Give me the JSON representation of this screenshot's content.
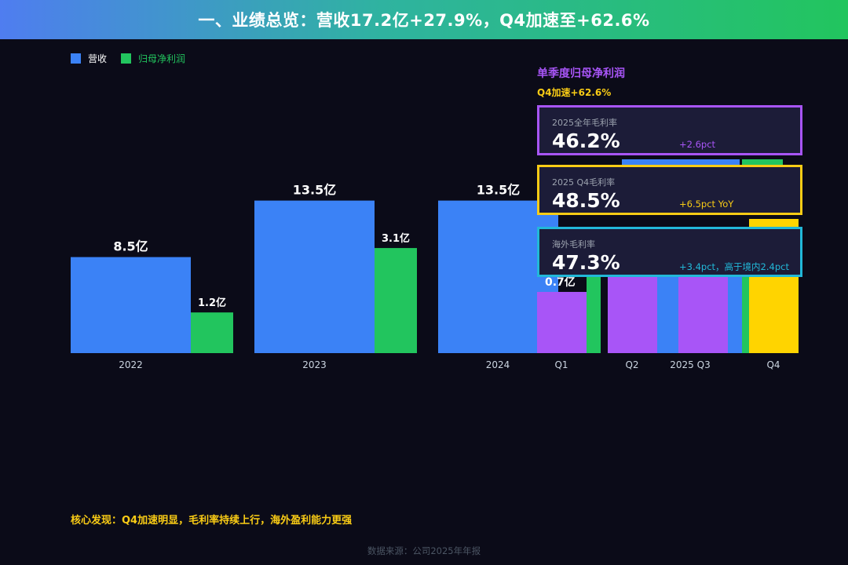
{
  "header": {
    "title": "一、业绩总览：营收17.2亿+27.9%，Q4加速至+62.6%"
  },
  "colors": {
    "revenue": "#3b82f6",
    "profit": "#22c55e",
    "quarter": "#a855f7",
    "q4": "#ffd400",
    "accent_yellow": "#facc15",
    "accent_cyan": "#22b8d8"
  },
  "legend": [
    {
      "label": "营收",
      "color": "#3b82f6"
    },
    {
      "label": "归母净利润",
      "color": "#22c55e"
    }
  ],
  "chart_data": [
    {
      "type": "bar",
      "categories": [
        "2022",
        "2023",
        "2024"
      ],
      "series": [
        {
          "name": "营收",
          "values": [
            8.5,
            13.5,
            13.5
          ],
          "labels": [
            "8.5亿",
            "13.5亿",
            "13.5亿"
          ]
        },
        {
          "name": "归母净利润",
          "values": [
            1.2,
            3.1,
            null
          ],
          "labels": [
            "1.2亿",
            "3.1亿",
            ""
          ]
        }
      ],
      "ylim": [
        0,
        20
      ],
      "grid": false,
      "legend_position": "top-left"
    },
    {
      "type": "bar",
      "title": "单季度归母净利润",
      "subtitle": "Q4加速+62.6%",
      "axis_label": "2025",
      "categories": [
        "Q1",
        "Q2",
        "Q3",
        "Q4"
      ],
      "values": [
        0.7,
        null,
        null,
        null
      ],
      "labels": [
        "0.7亿",
        "",
        "",
        ""
      ],
      "colors": [
        "#a855f7",
        "#a855f7",
        "#a855f7",
        "#ffd400"
      ]
    }
  ],
  "cards": [
    {
      "label": "2025全年毛利率",
      "value": "46.2%",
      "delta": "+2.6pct",
      "border": "#a855f7",
      "delta_color": "#a855f7"
    },
    {
      "label": "2025 Q4毛利率",
      "value": "48.5%",
      "delta": "+6.5pct YoY",
      "border": "#facc15",
      "delta_color": "#facc15"
    },
    {
      "label": "海外毛利率",
      "value": "47.3%",
      "delta": "+3.4pct，高于境内2.4pct",
      "border": "#22b8d8",
      "delta_color": "#22b8d8"
    }
  ],
  "finding": "核心发现：Q4加速明显，毛利率持续上行，海外盈利能力更强",
  "source": "数据来源：公司2025年年报"
}
